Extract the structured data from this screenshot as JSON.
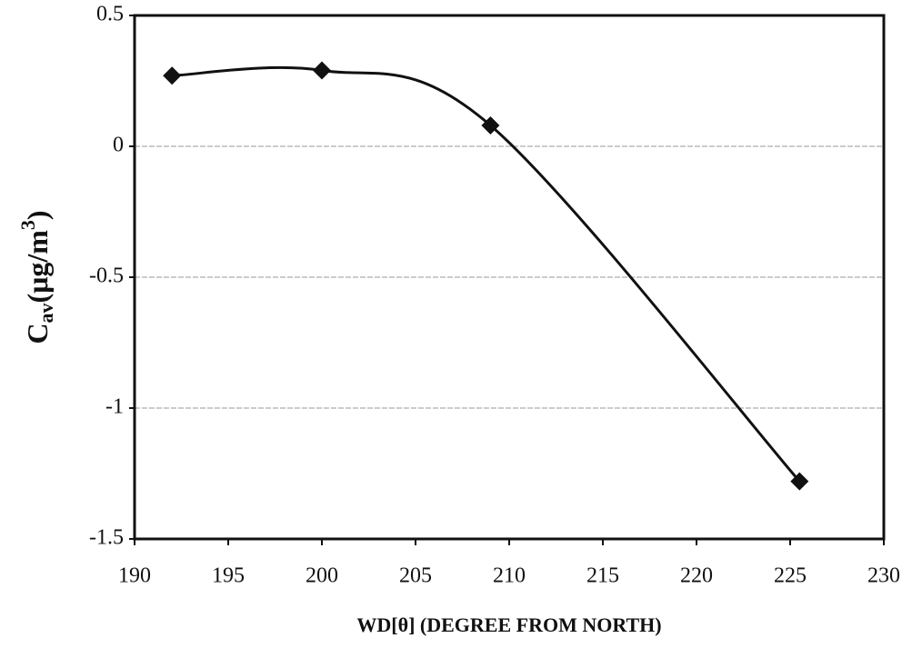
{
  "chart_data": {
    "type": "line",
    "x_label": "WD[θ] (DEGREE FROM NORTH)",
    "y_label_parts": [
      "C",
      "av",
      "(μg/m",
      "3",
      ")"
    ],
    "x": [
      192,
      200,
      209,
      225.5
    ],
    "series": [
      {
        "values": [
          0.27,
          0.29,
          0.08,
          -1.28
        ],
        "color": "#111111"
      }
    ],
    "xlim": [
      190,
      230
    ],
    "xticks": [
      190,
      195,
      200,
      205,
      210,
      215,
      220,
      225,
      230
    ],
    "ylim": [
      -1.5,
      0.5
    ],
    "yticks": [
      -1.5,
      -1,
      -0.5,
      0,
      0.5
    ],
    "grid": true,
    "smooth": true
  }
}
